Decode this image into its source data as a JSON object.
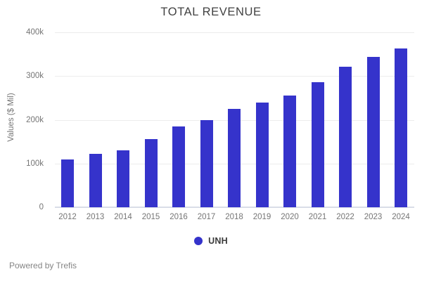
{
  "title": "TOTAL REVENUE",
  "footer": {
    "text": "Powered by Trefis"
  },
  "legend": {
    "label": "UNH",
    "dot_color": "#3533cb"
  },
  "colors": {
    "bar": "#3533cb",
    "title_text": "#414141",
    "axis_text": "#757575",
    "gridline": "#ececec",
    "baseline": "#d9dde7",
    "legend_text": "#3b3b3b",
    "footer_text": "#858585",
    "background": "#ffffff"
  },
  "chart_data": {
    "type": "bar",
    "title": "TOTAL REVENUE",
    "xlabel": "",
    "ylabel": "Values ($ Mil)",
    "categories": [
      "2012",
      "2013",
      "2014",
      "2015",
      "2016",
      "2017",
      "2018",
      "2019",
      "2020",
      "2021",
      "2022",
      "2023",
      "2024"
    ],
    "series": [
      {
        "name": "UNH",
        "values": [
          110000,
          122000,
          130000,
          156000,
          184000,
          200000,
          225000,
          240000,
          255000,
          286000,
          322000,
          343000,
          363000
        ]
      }
    ],
    "ylim": [
      0,
      400000
    ],
    "yticks": [
      {
        "value": 0,
        "label": "0"
      },
      {
        "value": 100000,
        "label": "100k"
      },
      {
        "value": 200000,
        "label": "200k"
      },
      {
        "value": 300000,
        "label": "300k"
      },
      {
        "value": 400000,
        "label": "400k"
      }
    ],
    "grid": true,
    "legend_position": "bottom"
  }
}
